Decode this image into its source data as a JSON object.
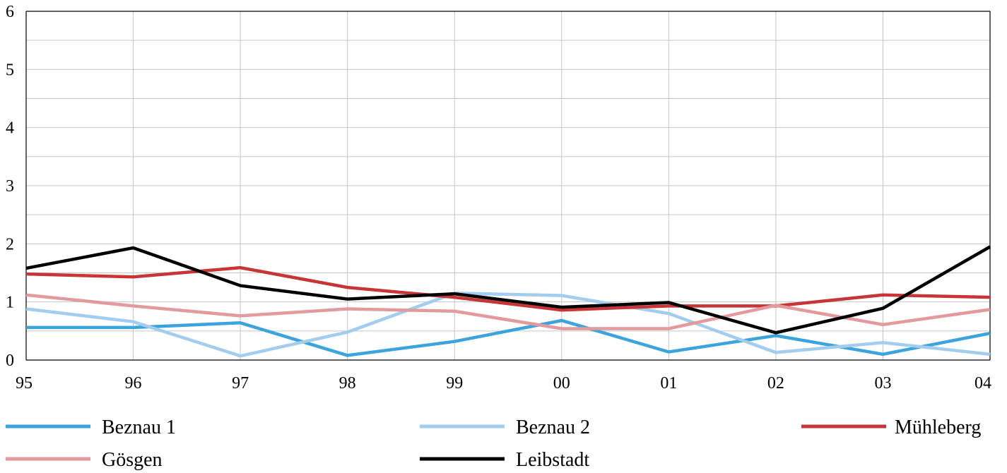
{
  "chart_data": {
    "type": "line",
    "title": "",
    "xlabel": "",
    "ylabel": "",
    "categories": [
      "95",
      "96",
      "97",
      "98",
      "99",
      "00",
      "01",
      "02",
      "03",
      "04"
    ],
    "y_ticks": [
      "0",
      "1",
      "2",
      "3",
      "4",
      "5",
      "6"
    ],
    "ylim": [
      0,
      6
    ],
    "minor_y_step": 0.5,
    "grid": true,
    "legend_position": "bottom",
    "series": [
      {
        "name": "Beznau 1",
        "color": "#3ba3de",
        "values": [
          0.56,
          0.56,
          0.64,
          0.08,
          0.32,
          0.68,
          0.14,
          0.42,
          0.1,
          0.46
        ]
      },
      {
        "name": "Beznau 2",
        "color": "#a3cdee",
        "values": [
          0.88,
          0.66,
          0.07,
          0.48,
          1.15,
          1.11,
          0.8,
          0.13,
          0.3,
          0.1
        ]
      },
      {
        "name": "Mühleberg",
        "color": "#c73536",
        "values": [
          1.48,
          1.43,
          1.59,
          1.25,
          1.08,
          0.86,
          0.93,
          0.93,
          1.12,
          1.08
        ]
      },
      {
        "name": "Gösgen",
        "color": "#e39a9c",
        "values": [
          1.12,
          0.93,
          0.76,
          0.88,
          0.84,
          0.54,
          0.54,
          0.94,
          0.61,
          0.87
        ]
      },
      {
        "name": "Leibstadt",
        "color": "#000000",
        "values": [
          1.58,
          1.93,
          1.28,
          1.05,
          1.14,
          0.91,
          0.99,
          0.47,
          0.89,
          1.95
        ]
      }
    ]
  }
}
